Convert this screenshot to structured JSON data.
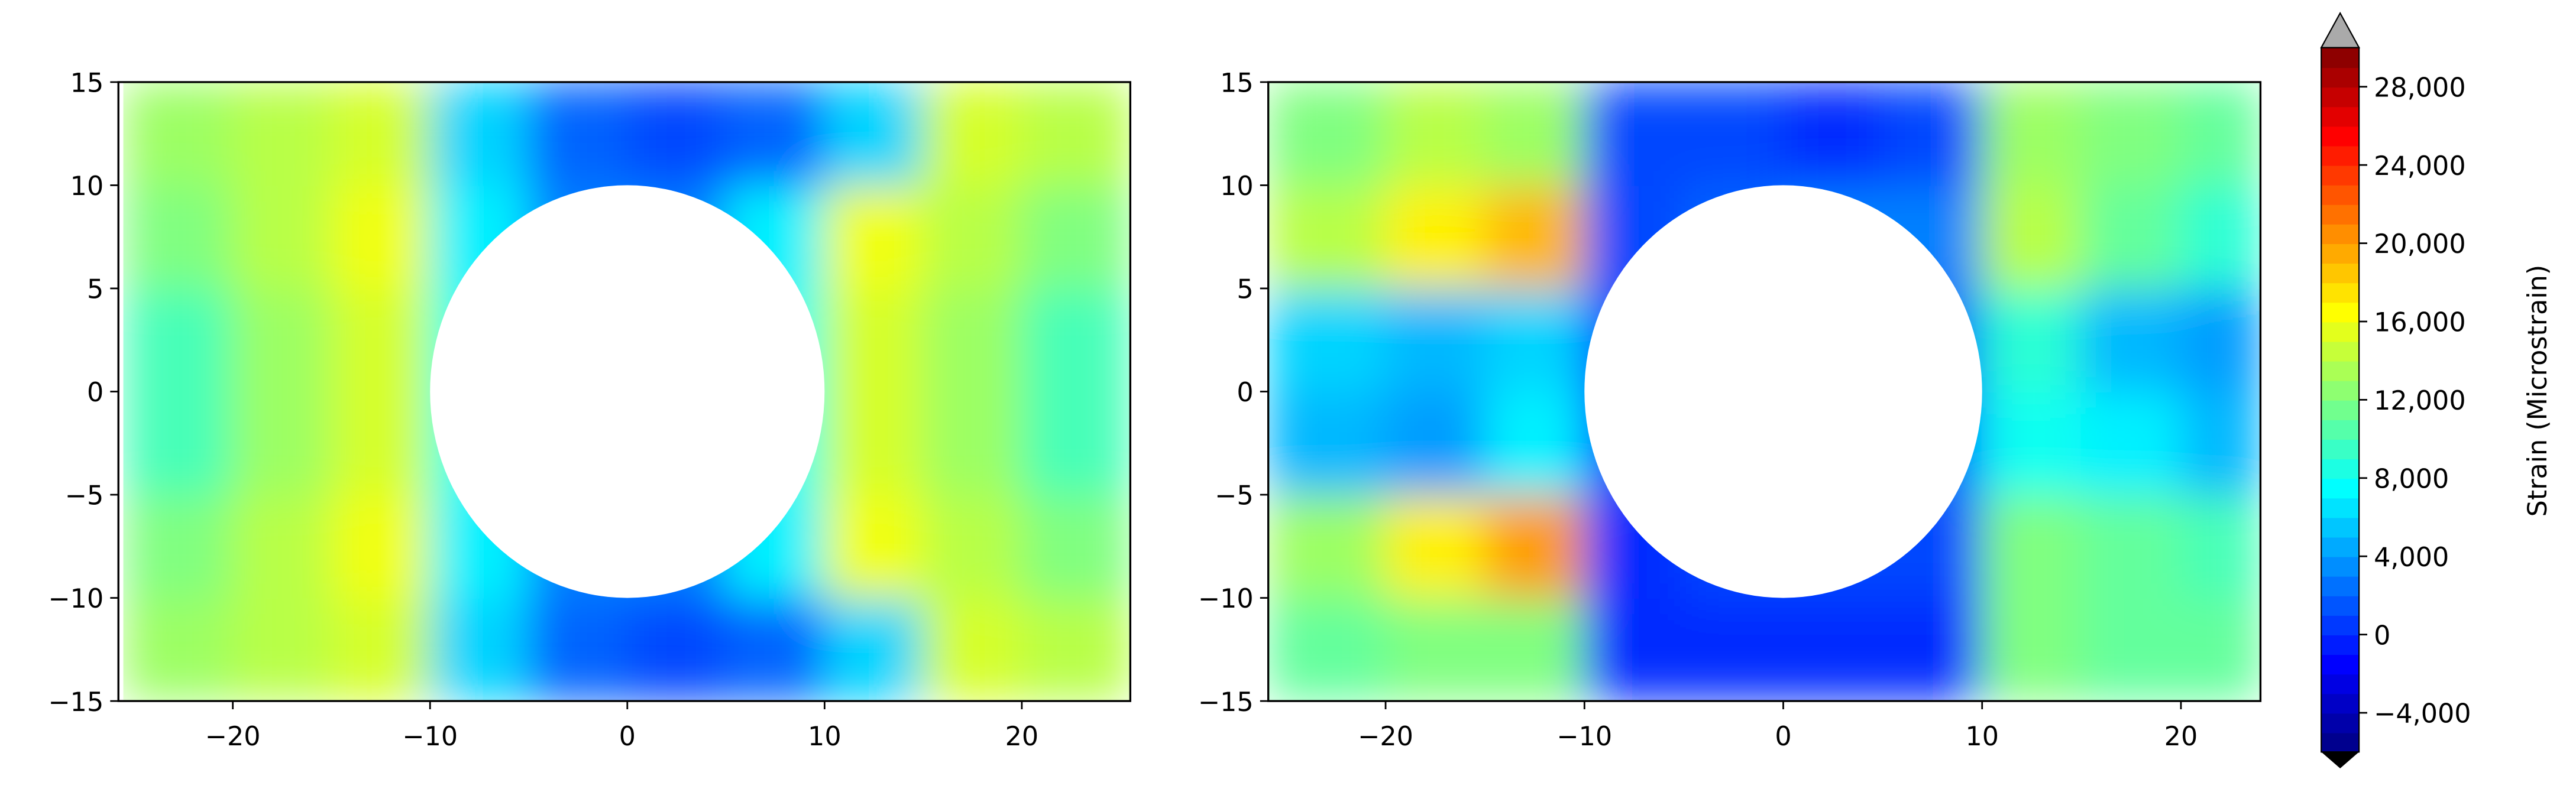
{
  "chart_data": [
    {
      "type": "heatmap",
      "x_edges": [
        -25.5,
        -20,
        -15,
        -10,
        -5,
        0,
        5,
        10,
        15,
        20,
        25.5
      ],
      "y_edges": [
        -15,
        -10,
        -5,
        0,
        5,
        10,
        15
      ],
      "values": [
        [
          13000,
          14000,
          15000,
          6000,
          2000,
          1000,
          2000,
          6000,
          15000,
          14000
        ],
        [
          12000,
          14000,
          16000,
          7000,
          3000,
          3000,
          7000,
          16000,
          14000,
          12000
        ],
        [
          10000,
          13000,
          15000,
          8000,
          8000,
          8000,
          8000,
          15000,
          13000,
          10000
        ],
        [
          10000,
          13000,
          15000,
          8000,
          8000,
          8000,
          8000,
          15000,
          13000,
          10000
        ],
        [
          12000,
          14000,
          16000,
          7000,
          3000,
          3000,
          7000,
          16000,
          14000,
          12000
        ],
        [
          13000,
          14000,
          15000,
          6000,
          2000,
          1000,
          2000,
          6000,
          15000,
          14000
        ]
      ],
      "xlim": [
        -25.8,
        25.5
      ],
      "ylim": [
        -15,
        15
      ],
      "xticks": [
        {
          "value": -20,
          "label": "−20"
        },
        {
          "value": -10,
          "label": "−10"
        },
        0,
        10,
        20
      ],
      "yticks": [
        {
          "value": -15,
          "label": "−15"
        },
        {
          "value": -10,
          "label": "−10"
        },
        {
          "value": -5,
          "label": "−5"
        },
        0,
        5,
        10,
        15
      ]
    },
    {
      "type": "heatmap",
      "x_edges": [
        -25.9,
        -20,
        -15,
        -10,
        -5,
        0,
        5,
        10,
        15,
        20,
        24
      ],
      "y_edges": [
        -15,
        -10,
        -5,
        0,
        5,
        10,
        15
      ],
      "values": [
        [
          11000,
          12000,
          12000,
          0,
          0,
          0,
          0,
          12000,
          11000,
          11000
        ],
        [
          13000,
          17000,
          20000,
          0,
          1000,
          1000,
          1000,
          12000,
          11000,
          10000
        ],
        [
          5000,
          4000,
          7000,
          1000,
          2000,
          2000,
          2000,
          8000,
          7000,
          5000
        ],
        [
          6000,
          5000,
          6000,
          1000,
          2000,
          2000,
          2000,
          9000,
          5000,
          4000
        ],
        [
          14000,
          17000,
          19000,
          1000,
          2000,
          3000,
          3000,
          14000,
          11000,
          9000
        ],
        [
          12000,
          14000,
          13000,
          1000,
          1000,
          0,
          1000,
          13000,
          12000,
          11000
        ]
      ],
      "xlim": [
        -25.9,
        24
      ],
      "ylim": [
        -15,
        15
      ],
      "xticks": [
        {
          "value": -20,
          "label": "−20"
        },
        {
          "value": -10,
          "label": "−10"
        },
        0,
        10,
        20
      ],
      "yticks": [
        {
          "value": -15,
          "label": "−15"
        },
        {
          "value": -10,
          "label": "−10"
        },
        {
          "value": -5,
          "label": "−5"
        },
        0,
        5,
        10,
        15
      ]
    }
  ],
  "colorbar": {
    "label": "Strain (Microstrain)",
    "colormap": "jet",
    "lim": [
      -6000,
      30000
    ],
    "ticks": [
      {
        "value": -4000,
        "label": "−4,000"
      },
      0,
      {
        "value": 4000,
        "label": "4,000"
      },
      {
        "value": 8000,
        "label": "8,000"
      },
      {
        "value": 12000,
        "label": "12,000"
      },
      {
        "value": 16000,
        "label": "16,000"
      },
      {
        "value": 20000,
        "label": "20,000"
      },
      {
        "value": 24000,
        "label": "24,000"
      },
      {
        "value": 28000,
        "label": "28,000"
      }
    ]
  }
}
